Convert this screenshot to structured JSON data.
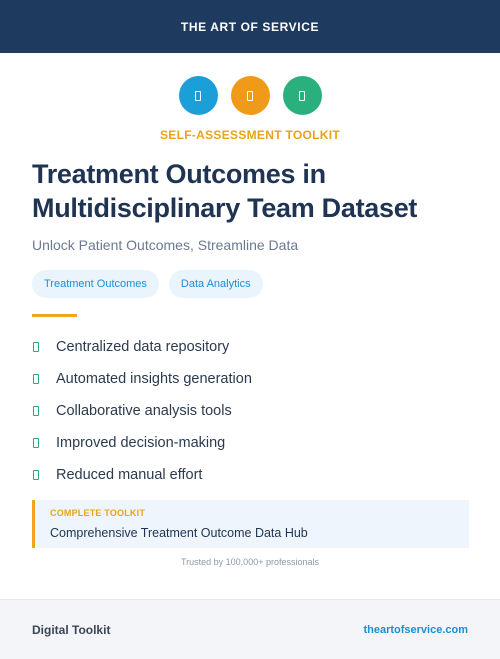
{
  "header": {
    "brand": "THE ART OF SERVICE"
  },
  "icons": [
    {
      "name": "info-icon",
      "color": "#1a9fd9"
    },
    {
      "name": "doc-icon",
      "color": "#f09a1a"
    },
    {
      "name": "chart-icon",
      "color": "#2ab07c"
    }
  ],
  "eyebrow": "SELF-ASSESSMENT TOOLKIT",
  "title": "Treatment Outcomes in Multidisciplinary Team Dataset",
  "subtitle": "Unlock Patient Outcomes, Streamline Data",
  "tags": [
    "Treatment Outcomes",
    "Data Analytics"
  ],
  "features": [
    "Centralized data repository",
    "Automated insights generation",
    "Collaborative analysis tools",
    "Improved decision-making",
    "Reduced manual effort"
  ],
  "callout": {
    "kicker": "COMPLETE TOOLKIT",
    "name": "Comprehensive Treatment Outcome Data Hub"
  },
  "trusted": "Trusted by 100,000+ professionals",
  "footer": {
    "left": "Digital Toolkit",
    "right": "theartofservice.com"
  }
}
